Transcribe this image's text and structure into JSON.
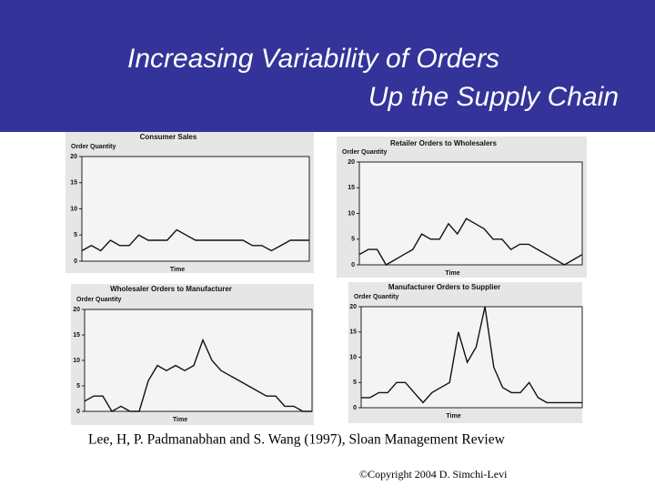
{
  "slide": {
    "title": [
      "Increasing Variability of Orders",
      "Up the Supply Chain"
    ],
    "citation": "Lee, H, P. Padmanabhan and S. Wang (1997), Sloan Management Review",
    "copyright": "©Copyright 2004 D. Simchi-Levi"
  },
  "chart_data": [
    {
      "type": "line",
      "title": "Consumer Sales",
      "ylabel": "Order Quantity",
      "xlabel": "Time",
      "color": "#111111",
      "ylim": [
        0,
        20
      ],
      "yticks": [
        0,
        5,
        10,
        15,
        20
      ],
      "values": [
        2,
        3,
        2,
        4,
        3,
        3,
        5,
        4,
        4,
        4,
        6,
        5,
        4,
        4,
        4,
        4,
        4,
        4,
        3,
        3,
        2,
        3,
        4,
        4,
        4
      ]
    },
    {
      "type": "line",
      "title": "Retailer Orders to Wholesalers",
      "ylabel": "Order Quantity",
      "xlabel": "Time",
      "color": "#111111",
      "ylim": [
        0,
        20
      ],
      "yticks": [
        0,
        5,
        10,
        15,
        20
      ],
      "values": [
        2,
        3,
        3,
        0,
        1,
        2,
        3,
        6,
        5,
        5,
        8,
        6,
        9,
        8,
        7,
        5,
        5,
        3,
        4,
        4,
        3,
        2,
        1,
        0,
        1,
        2
      ]
    },
    {
      "type": "line",
      "title": "Wholesaler Orders to Manufacturer",
      "ylabel": "Order Quantity",
      "xlabel": "Time",
      "color": "#111111",
      "ylim": [
        0,
        20
      ],
      "yticks": [
        0,
        5,
        10,
        15,
        20
      ],
      "values": [
        2,
        3,
        3,
        0,
        1,
        0,
        0,
        6,
        9,
        8,
        9,
        8,
        9,
        14,
        10,
        8,
        7,
        6,
        5,
        4,
        3,
        3,
        1,
        1,
        0,
        0
      ]
    },
    {
      "type": "line",
      "title": "Manufacturer Orders to Supplier",
      "ylabel": "Order Quantity",
      "xlabel": "Time",
      "color": "#111111",
      "ylim": [
        0,
        20
      ],
      "yticks": [
        0,
        5,
        10,
        15,
        20
      ],
      "values": [
        2,
        2,
        3,
        3,
        5,
        5,
        3,
        1,
        3,
        4,
        5,
        15,
        9,
        12,
        20,
        8,
        4,
        3,
        3,
        5,
        2,
        1,
        1,
        1,
        1,
        1
      ]
    }
  ]
}
